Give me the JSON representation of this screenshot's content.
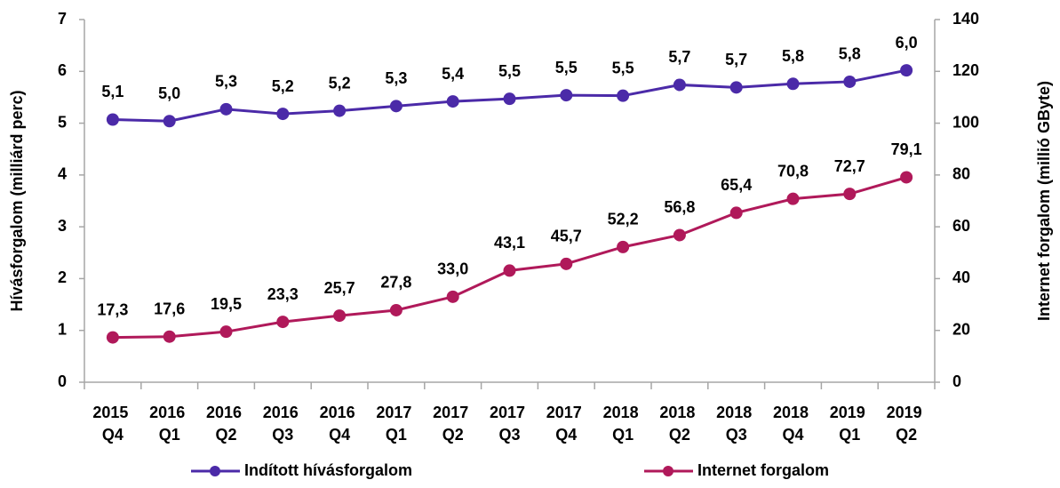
{
  "chart_data": {
    "type": "line",
    "categories": [
      "2015 Q4",
      "2016 Q1",
      "2016 Q2",
      "2016 Q3",
      "2016 Q4",
      "2017 Q1",
      "2017 Q2",
      "2017 Q3",
      "2017 Q4",
      "2018 Q1",
      "2018 Q2",
      "2018 Q3",
      "2018 Q4",
      "2019 Q1",
      "2019 Q2"
    ],
    "y_label": "Hívásforgalom (milliárd perc)",
    "y2_label": "Internet forgalom (millió GByte)",
    "ylim": [
      0,
      7
    ],
    "yticks": [
      0,
      1,
      2,
      3,
      4,
      5,
      6,
      7
    ],
    "y2lim": [
      0,
      140
    ],
    "y2ticks": [
      0,
      20,
      40,
      60,
      80,
      100,
      120,
      140
    ],
    "legend": "bottom",
    "series": [
      {
        "name": "Indított hívásforgalom",
        "color": "#4b2aa8",
        "values": [
          5.07,
          5.04,
          5.27,
          5.18,
          5.24,
          5.33,
          5.42,
          5.47,
          5.54,
          5.53,
          5.74,
          5.69,
          5.76,
          5.8,
          6.02
        ],
        "value_labels": [
          "5,1",
          "5,0",
          "5,3",
          "5,2",
          "5,2",
          "5,3",
          "5,4",
          "5,5",
          "5,5",
          "5,5",
          "5,7",
          "5,7",
          "5,8",
          "5,8",
          "6,0"
        ]
      },
      {
        "name": "Internet forgalom",
        "color": "#b0195a",
        "axis": "y2",
        "values": [
          17.3,
          17.6,
          19.5,
          23.3,
          25.7,
          27.8,
          33.0,
          43.1,
          45.7,
          52.2,
          56.8,
          65.4,
          70.8,
          72.7,
          79.1
        ],
        "value_labels": [
          "17,3",
          "17,6",
          "19,5",
          "23,3",
          "25,7",
          "27,8",
          "33,0",
          "43,1",
          "45,7",
          "52,2",
          "56,8",
          "65,4",
          "70,8",
          "72,7",
          "79,1"
        ]
      }
    ]
  }
}
